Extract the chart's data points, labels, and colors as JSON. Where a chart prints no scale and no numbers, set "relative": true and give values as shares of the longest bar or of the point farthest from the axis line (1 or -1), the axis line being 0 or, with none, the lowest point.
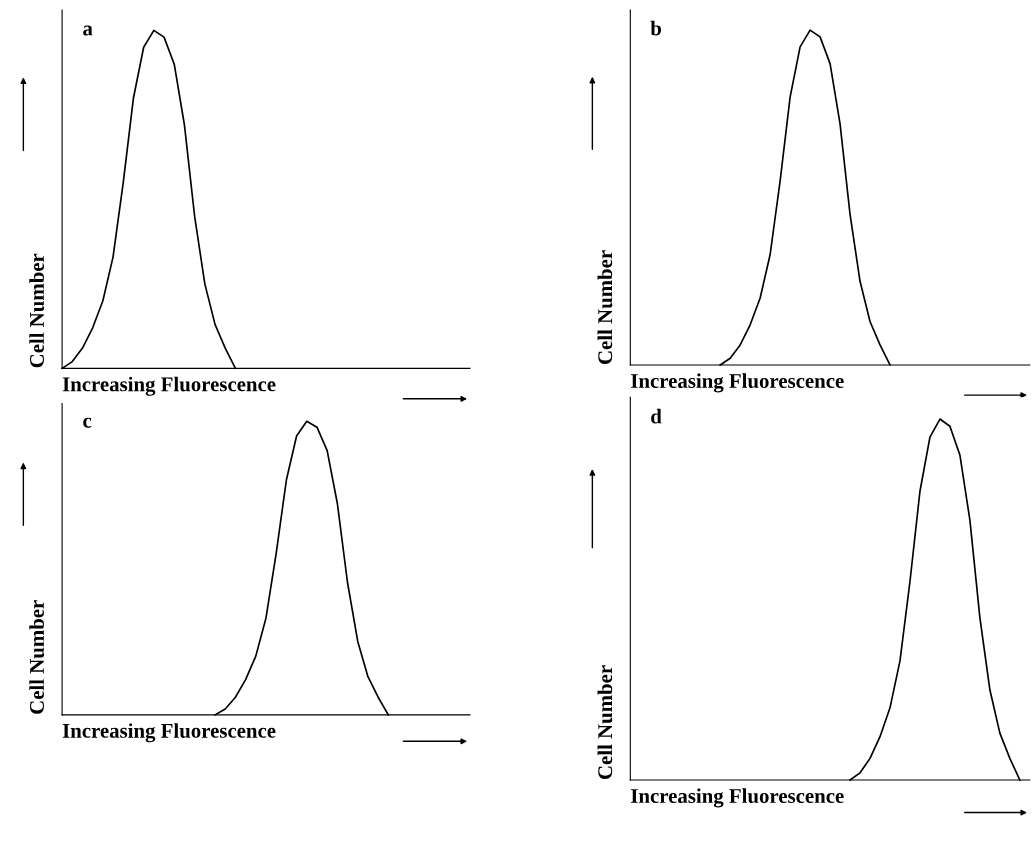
{
  "chart_data": [
    {
      "type": "line",
      "relative": true,
      "xlabel": "Increasing Fluorescence",
      "ylabel": "Cell Number",
      "annotations": [
        "a"
      ],
      "marker": "none",
      "line_style": "solid",
      "categories": [
        null,
        null,
        null,
        null,
        null,
        null,
        null,
        null,
        null,
        null,
        null,
        null,
        null,
        null,
        null,
        null,
        null,
        null,
        null,
        null,
        null,
        null,
        null,
        null,
        null,
        null,
        null,
        null,
        null,
        null,
        null,
        null,
        null,
        null,
        null,
        null,
        null,
        null,
        null,
        null,
        null
      ],
      "series": [
        {
          "color": "#000000",
          "values": [
            0,
            0.02,
            0.06,
            0.12,
            0.2,
            0.33,
            0.55,
            0.8,
            0.95,
            1.0,
            0.98,
            0.9,
            0.72,
            0.45,
            0.25,
            0.13,
            0.06,
            0,
            null,
            null,
            null,
            null,
            null,
            null,
            null,
            null,
            null,
            null,
            null,
            null,
            null,
            null,
            null,
            null,
            null,
            null,
            null,
            null,
            null,
            null,
            null
          ]
        }
      ]
    },
    {
      "type": "line",
      "relative": true,
      "xlabel": "Increasing Fluorescence",
      "ylabel": "Cell Number",
      "annotations": [
        "b"
      ],
      "marker": "none",
      "line_style": "solid",
      "categories": [
        null,
        null,
        null,
        null,
        null,
        null,
        null,
        null,
        null,
        null,
        null,
        null,
        null,
        null,
        null,
        null,
        null,
        null,
        null,
        null,
        null,
        null,
        null,
        null,
        null,
        null,
        null,
        null,
        null,
        null,
        null,
        null,
        null,
        null,
        null,
        null,
        null,
        null,
        null,
        null,
        null
      ],
      "series": [
        {
          "color": "#000000",
          "values": [
            null,
            null,
            null,
            null,
            null,
            null,
            null,
            null,
            null,
            0,
            0.02,
            0.06,
            0.12,
            0.2,
            0.33,
            0.55,
            0.8,
            0.95,
            1.0,
            0.98,
            0.9,
            0.72,
            0.45,
            0.25,
            0.13,
            0.06,
            0,
            null,
            null,
            null,
            null,
            null,
            null,
            null,
            null,
            null,
            null,
            null,
            null,
            null,
            null
          ]
        }
      ]
    },
    {
      "type": "line",
      "relative": true,
      "xlabel": "Increasing Fluorescence",
      "ylabel": "Cell Number",
      "annotations": [
        "c"
      ],
      "marker": "none",
      "line_style": "solid",
      "categories": [
        null,
        null,
        null,
        null,
        null,
        null,
        null,
        null,
        null,
        null,
        null,
        null,
        null,
        null,
        null,
        null,
        null,
        null,
        null,
        null,
        null,
        null,
        null,
        null,
        null,
        null,
        null,
        null,
        null,
        null,
        null,
        null,
        null,
        null,
        null,
        null,
        null,
        null,
        null,
        null,
        null
      ],
      "series": [
        {
          "color": "#000000",
          "values": [
            null,
            null,
            null,
            null,
            null,
            null,
            null,
            null,
            null,
            null,
            null,
            null,
            null,
            null,
            null,
            0,
            0.02,
            0.06,
            0.12,
            0.2,
            0.33,
            0.55,
            0.8,
            0.95,
            1.0,
            0.98,
            0.9,
            0.72,
            0.45,
            0.25,
            0.13,
            0.06,
            0,
            null,
            null,
            null,
            null,
            null,
            null,
            null,
            null
          ]
        }
      ]
    },
    {
      "type": "line",
      "relative": true,
      "xlabel": "Increasing Fluorescence",
      "ylabel": "Cell Number",
      "annotations": [
        "d"
      ],
      "marker": "none",
      "line_style": "solid",
      "categories": [
        null,
        null,
        null,
        null,
        null,
        null,
        null,
        null,
        null,
        null,
        null,
        null,
        null,
        null,
        null,
        null,
        null,
        null,
        null,
        null,
        null,
        null,
        null,
        null,
        null,
        null,
        null,
        null,
        null,
        null,
        null,
        null,
        null,
        null,
        null,
        null,
        null,
        null,
        null,
        null,
        null
      ],
      "series": [
        {
          "color": "#000000",
          "values": [
            null,
            null,
            null,
            null,
            null,
            null,
            null,
            null,
            null,
            null,
            null,
            null,
            null,
            null,
            null,
            null,
            null,
            null,
            null,
            null,
            null,
            null,
            0,
            0.02,
            0.06,
            0.12,
            0.2,
            0.33,
            0.55,
            0.8,
            0.95,
            1.0,
            0.98,
            0.9,
            0.72,
            0.45,
            0.25,
            0.13,
            0.06,
            0,
            null
          ]
        }
      ]
    }
  ]
}
